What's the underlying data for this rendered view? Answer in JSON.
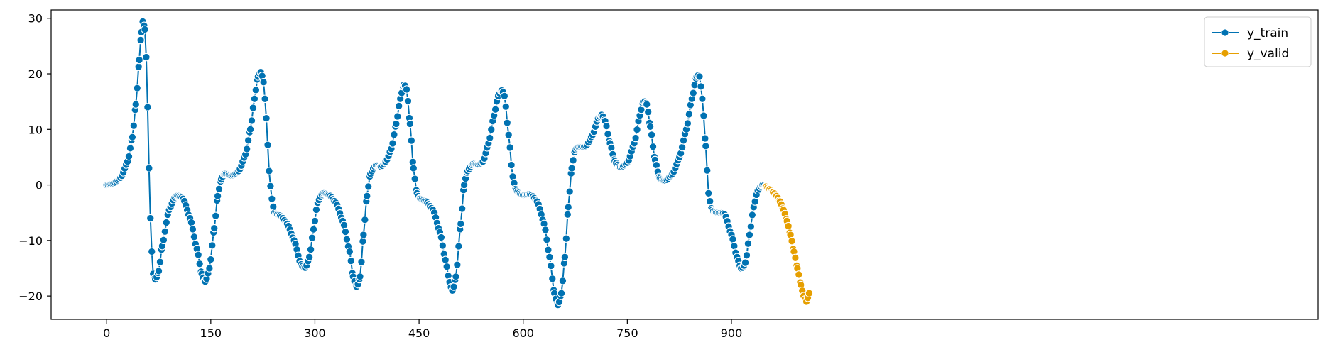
{
  "chart_data": {
    "type": "line",
    "title": "",
    "xlabel": "",
    "ylabel": "",
    "xlim": [
      -80,
      1745
    ],
    "ylim": [
      -24.2,
      31.5
    ],
    "x_ticks": [
      0,
      150,
      300,
      450,
      600,
      750,
      900
    ],
    "y_ticks": [
      -20,
      -10,
      0,
      10,
      20,
      30
    ],
    "grid": false,
    "legend_position": "top-right",
    "marker": "circle",
    "series": [
      {
        "name": "y_train",
        "color": "#0072b2",
        "points": [
          [
            0,
            0
          ],
          [
            10,
            0.3
          ],
          [
            20,
            1.3
          ],
          [
            30,
            4.2
          ],
          [
            37,
            8.6
          ],
          [
            42,
            14.5
          ],
          [
            47,
            22.5
          ],
          [
            50,
            27.5
          ],
          [
            52,
            29.4
          ],
          [
            55,
            28
          ],
          [
            57,
            23
          ],
          [
            59,
            14
          ],
          [
            61,
            3
          ],
          [
            63,
            -6
          ],
          [
            65,
            -12
          ],
          [
            67,
            -16
          ],
          [
            70,
            -17
          ],
          [
            75,
            -15.5
          ],
          [
            80,
            -11
          ],
          [
            90,
            -4.5
          ],
          [
            100,
            -2
          ],
          [
            110,
            -2.5
          ],
          [
            120,
            -6
          ],
          [
            130,
            -11.5
          ],
          [
            137,
            -16
          ],
          [
            142,
            -17.4
          ],
          [
            148,
            -15
          ],
          [
            155,
            -7.8
          ],
          [
            160,
            -2
          ],
          [
            165,
            1
          ],
          [
            170,
            2
          ],
          [
            180,
            1.7
          ],
          [
            190,
            2.5
          ],
          [
            200,
            5.5
          ],
          [
            207,
            10
          ],
          [
            213,
            15.5
          ],
          [
            218,
            19.5
          ],
          [
            222,
            20.3
          ],
          [
            226,
            18.5
          ],
          [
            230,
            12
          ],
          [
            234,
            2.5
          ],
          [
            238,
            -2.5
          ],
          [
            242,
            -5
          ],
          [
            250,
            -5.5
          ],
          [
            260,
            -7
          ],
          [
            270,
            -10
          ],
          [
            280,
            -14.3
          ],
          [
            286,
            -14.9
          ],
          [
            292,
            -13
          ],
          [
            298,
            -8
          ],
          [
            304,
            -3.2
          ],
          [
            312,
            -1.5
          ],
          [
            320,
            -1.8
          ],
          [
            330,
            -3.2
          ],
          [
            340,
            -6.5
          ],
          [
            350,
            -12
          ],
          [
            355,
            -16.5
          ],
          [
            360,
            -18.3
          ],
          [
            365,
            -16.5
          ],
          [
            370,
            -9
          ],
          [
            375,
            -2
          ],
          [
            380,
            2
          ],
          [
            388,
            3.5
          ],
          [
            395,
            3.3
          ],
          [
            402,
            4.2
          ],
          [
            410,
            6.5
          ],
          [
            417,
            11
          ],
          [
            423,
            15.5
          ],
          [
            428,
            18
          ],
          [
            432,
            17.2
          ],
          [
            437,
            11
          ],
          [
            442,
            3
          ],
          [
            447,
            -1.5
          ],
          [
            452,
            -2.5
          ],
          [
            460,
            -3
          ],
          [
            470,
            -4.5
          ],
          [
            480,
            -8.5
          ],
          [
            488,
            -13.5
          ],
          [
            494,
            -17.5
          ],
          [
            498,
            -19
          ],
          [
            503,
            -16.5
          ],
          [
            510,
            -7
          ],
          [
            515,
            0
          ],
          [
            520,
            2.5
          ],
          [
            528,
            3.8
          ],
          [
            535,
            3.7
          ],
          [
            542,
            4.2
          ],
          [
            550,
            7.5
          ],
          [
            558,
            12.5
          ],
          [
            564,
            16
          ],
          [
            569,
            17
          ],
          [
            573,
            16
          ],
          [
            579,
            9
          ],
          [
            585,
            1.5
          ],
          [
            590,
            -1
          ],
          [
            600,
            -1.8
          ],
          [
            610,
            -1.7
          ],
          [
            620,
            -3
          ],
          [
            630,
            -7
          ],
          [
            638,
            -13
          ],
          [
            645,
            -19.5
          ],
          [
            650,
            -21.6
          ],
          [
            655,
            -19.5
          ],
          [
            660,
            -13
          ],
          [
            665,
            -4
          ],
          [
            670,
            3
          ],
          [
            675,
            6.3
          ],
          [
            680,
            6.8
          ],
          [
            690,
            7
          ],
          [
            700,
            9
          ],
          [
            708,
            12
          ],
          [
            713,
            12.6
          ],
          [
            718,
            11.5
          ],
          [
            725,
            7.5
          ],
          [
            732,
            4.3
          ],
          [
            740,
            3.2
          ],
          [
            750,
            4
          ],
          [
            760,
            7.5
          ],
          [
            768,
            12.5
          ],
          [
            773,
            15
          ],
          [
            778,
            14.5
          ],
          [
            783,
            10.5
          ],
          [
            790,
            4.5
          ],
          [
            797,
            1.2
          ],
          [
            805,
            0.8
          ],
          [
            815,
            2
          ],
          [
            825,
            5
          ],
          [
            835,
            10
          ],
          [
            843,
            15.5
          ],
          [
            850,
            19.5
          ],
          [
            854,
            19.5
          ],
          [
            858,
            15.5
          ],
          [
            863,
            7
          ],
          [
            867,
            -1.5
          ],
          [
            872,
            -4.5
          ],
          [
            880,
            -5
          ],
          [
            890,
            -5.3
          ],
          [
            900,
            -9
          ],
          [
            908,
            -13
          ],
          [
            914,
            -15
          ],
          [
            920,
            -14
          ],
          [
            926,
            -9
          ],
          [
            932,
            -4
          ],
          [
            938,
            -1
          ],
          [
            945,
            0
          ],
          [
            950,
            -0.3
          ]
        ]
      },
      {
        "name": "y_valid",
        "color": "#e69f00",
        "points": [
          [
            950,
            -0.3
          ],
          [
            955,
            -0.8
          ],
          [
            960,
            -1.3
          ],
          [
            965,
            -2
          ],
          [
            970,
            -3
          ],
          [
            975,
            -4.5
          ],
          [
            980,
            -6.5
          ],
          [
            985,
            -9
          ],
          [
            990,
            -12
          ],
          [
            995,
            -15
          ],
          [
            1000,
            -18
          ],
          [
            1004,
            -20
          ],
          [
            1008,
            -21
          ],
          [
            1012,
            -19.5
          ]
        ]
      }
    ]
  }
}
